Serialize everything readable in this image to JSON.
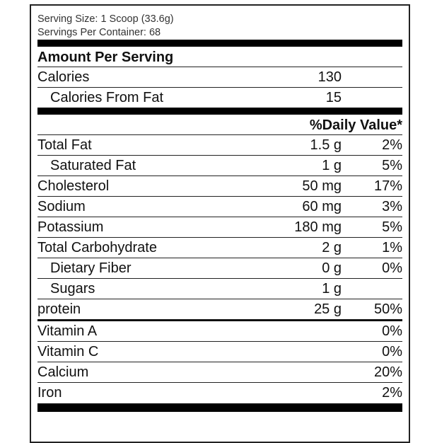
{
  "serving_size": "Serving Size: 1 Scoop (33.6g)",
  "servings_per_container": "Servings Per Container: 68",
  "amount_per_serving": "Amount Per Serving",
  "calories": {
    "label": "Calories",
    "value": "130"
  },
  "calories_from_fat": {
    "label": "Calories From Fat",
    "value": "15"
  },
  "daily_value_header": "%Daily Value*",
  "nutrients": [
    {
      "name": "Total Fat",
      "amount": "1.5 g",
      "dv": "2%"
    },
    {
      "name": "Saturated Fat",
      "amount": "1 g",
      "dv": "5%"
    },
    {
      "name": "Cholesterol",
      "amount": "50 mg",
      "dv": "17%"
    },
    {
      "name": "Sodium",
      "amount": "60 mg",
      "dv": "3%"
    },
    {
      "name": "Potassium",
      "amount": "180 mg",
      "dv": "5%"
    },
    {
      "name": "Total Carbohydrate",
      "amount": "2 g",
      "dv": "1%"
    },
    {
      "name": "Dietary Fiber",
      "amount": "0 g",
      "dv": "0%"
    },
    {
      "name": "Sugars",
      "amount": "1 g",
      "dv": ""
    },
    {
      "name": "protein",
      "amount": "25 g",
      "dv": "50%"
    }
  ],
  "vitamins": [
    {
      "name": "Vitamin A",
      "dv": "0%"
    },
    {
      "name": "Vitamin C",
      "dv": "0%"
    },
    {
      "name": "Calcium",
      "dv": "20%"
    },
    {
      "name": "Iron",
      "dv": "2%"
    }
  ]
}
